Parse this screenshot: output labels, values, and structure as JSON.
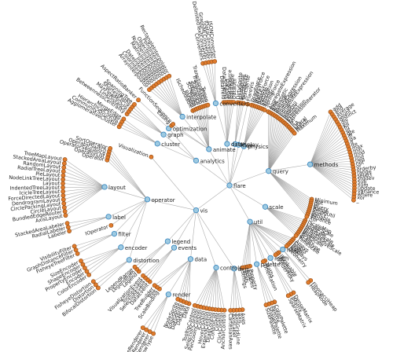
{
  "tree": {
    "name": "flare",
    "children": [
      {
        "name": "analytics",
        "children": [
          {
            "name": "cluster",
            "children": [
              "AgglomerativeCluster",
              "CommunityStructure",
              "HierarchicalCluster",
              "MergeEdge"
            ]
          },
          {
            "name": "graph",
            "children": [
              "BetweennessCentrality",
              "LinkDistance",
              "MaxFlowMinCut",
              "ShortestPaths",
              "SpanningTree"
            ]
          },
          {
            "name": "optimization",
            "children": [
              "AspectRatioBanker"
            ]
          }
        ]
      },
      {
        "name": "animate",
        "children": [
          "Easing",
          "FunctionSequence",
          {
            "name": "interpolate",
            "children": [
              "ArrayInterpolator",
              "ColorInterpolator",
              "DateInterpolator",
              "Interpolator",
              "MatrixInterpolator",
              "NumberInterpolator",
              "ObjectInterpolator",
              "PointInterpolator",
              "RectangleInterpolator"
            ]
          },
          "ISchedulable",
          "Parallel",
          "Pause",
          "Scheduler",
          "Sequence",
          "Transition",
          "Transitioner",
          "TransitionEvent",
          "Tween"
        ]
      },
      {
        "name": "data",
        "children": [
          {
            "name": "converters",
            "children": [
              "Converters",
              "DelimitedTextConverter",
              "GraphMLConverter",
              "IDataConverter",
              "JSONConverter"
            ]
          },
          "DataField",
          "DataSchema",
          "DataSet",
          "DataSource",
          "DataTable",
          "DataUtil"
        ]
      },
      {
        "name": "display",
        "children": [
          "DirtySprite",
          "LineSprite",
          "RectSprite",
          "TextSprite"
        ]
      },
      {
        "name": "flex",
        "children": [
          "FlareVis"
        ]
      },
      {
        "name": "physics",
        "children": [
          "DragForce",
          "GravityForce",
          "IForce",
          "NBodyForce",
          "Particle",
          "Simulation",
          "Spring",
          "SpringForce"
        ]
      },
      {
        "name": "query",
        "children": [
          "AggregateExpression",
          "And",
          "Arithmetic",
          "Average",
          "BinaryExpression",
          "Comparison",
          "CompositeExpression",
          "Count",
          "DateUtil",
          "Distinct",
          "Expression",
          "ExpressionIterator",
          "Fn",
          "If",
          "IsA",
          "Literal",
          "Match",
          "Maximum",
          {
            "name": "methods",
            "children": [
              "add",
              "and",
              "average",
              "count",
              "distinct",
              "div",
              "eq",
              "fn",
              "gt",
              "gte",
              "iff",
              "isa",
              "lt",
              "lte",
              "max",
              "min",
              "mod",
              "mul",
              "neq",
              "not",
              "or",
              "orderby",
              "range",
              "select",
              "stddev",
              "sub",
              "sum",
              "update",
              "variance",
              "where",
              "xor",
              "_"
            ]
          },
          "Minimum",
          "Not",
          "Or",
          "Query",
          "Range",
          "StringUtil",
          "Sum",
          "Variable",
          "Variance",
          "Xor"
        ]
      },
      {
        "name": "scale",
        "children": [
          "IScaleMap",
          "LinearScale",
          "LogScale",
          "OrdinalScale",
          "QuantileScale",
          "QuantitativeScale",
          "RootScale",
          "Scale",
          "ScaleType",
          "TimeScale"
        ]
      },
      {
        "name": "util",
        "children": [
          "Arrays",
          "Colors",
          "Dates",
          "Displays",
          "Filter",
          "Geometry",
          {
            "name": "heap",
            "children": [
              "FibonacciHeap",
              "HeapNode"
            ]
          },
          "IEvaluable",
          "IPredicate",
          "IValueProxy",
          {
            "name": "math",
            "children": [
              "DenseMatrix",
              "IMatrix",
              "SparseMatrix"
            ]
          },
          "Maths",
          "Orientation",
          {
            "name": "palette",
            "children": [
              "ColorPalette",
              "Palette",
              "ShapePalette",
              "SizePalette"
            ]
          },
          "Property",
          "Shapes",
          "Sort",
          "Stats",
          "Strings"
        ]
      },
      {
        "name": "vis",
        "children": [
          {
            "name": "axis",
            "children": [
              "Axes",
              "Axis",
              "AxisGridLine",
              "AxisLabel",
              "CartesianAxes"
            ]
          },
          {
            "name": "controls",
            "children": [
              "AnchorControl",
              "ClickControl",
              "Control",
              "ControlList",
              "DragControl",
              "ExpandControl",
              "HoverControl",
              "IControl",
              "PanZoomControl",
              "SelectionControl",
              "TooltipControl"
            ]
          },
          {
            "name": "data",
            "children": [
              "Data",
              "DataList",
              "DataSprite",
              "EdgeSprite",
              "NodeSprite",
              {
                "name": "render",
                "children": [
                  "ArrowType",
                  "EdgeRenderer",
                  "IRenderer",
                  "ShapeRenderer"
                ]
              },
              "ScaleBinding",
              "Tree",
              "TreeBuilder"
            ]
          },
          {
            "name": "events",
            "children": [
              "DataEvent",
              "SelectionEvent",
              "TooltipEvent",
              "VisualizationEvent"
            ]
          },
          {
            "name": "legend",
            "children": [
              "Legend",
              "LegendItem",
              "LegendRange"
            ]
          },
          {
            "name": "operator",
            "children": [
              {
                "name": "distortion",
                "children": [
                  "BifocalDistortion",
                  "Distortion",
                  "FisheyeDistortion"
                ]
              },
              {
                "name": "encoder",
                "children": [
                  "ColorEncoder",
                  "Encoder",
                  "PropertyEncoder",
                  "ShapeEncoder",
                  "SizeEncoder"
                ]
              },
              {
                "name": "filter",
                "children": [
                  "FisheyeTreeFilter",
                  "GraphDistanceFilter",
                  "VisibilityFilter"
                ]
              },
              "IOperator",
              {
                "name": "label",
                "children": [
                  "Labeler",
                  "RadialLabeler",
                  "StackedAreaLabeler"
                ]
              },
              {
                "name": "layout",
                "children": [
                  "AxisLayout",
                  "BundledEdgeRouter",
                  "CircleLayout",
                  "CirclePackingLayout",
                  "DendrogramLayout",
                  "ForceDirectedLayout",
                  "IcicleTreeLayout",
                  "IndentedTreeLayout",
                  "Layout",
                  "NodeLinkTreeLayout",
                  "PieLayout",
                  "RadialTreeLayout",
                  "RandomLayout",
                  "StackedAreaLayout",
                  "TreeMapLayout"
                ]
              },
              "Operator",
              "OperatorList",
              "OperatorSequence",
              "OperatorSwitch",
              "SortOperator"
            ]
          },
          "Visualization"
        ]
      }
    ]
  }
}
